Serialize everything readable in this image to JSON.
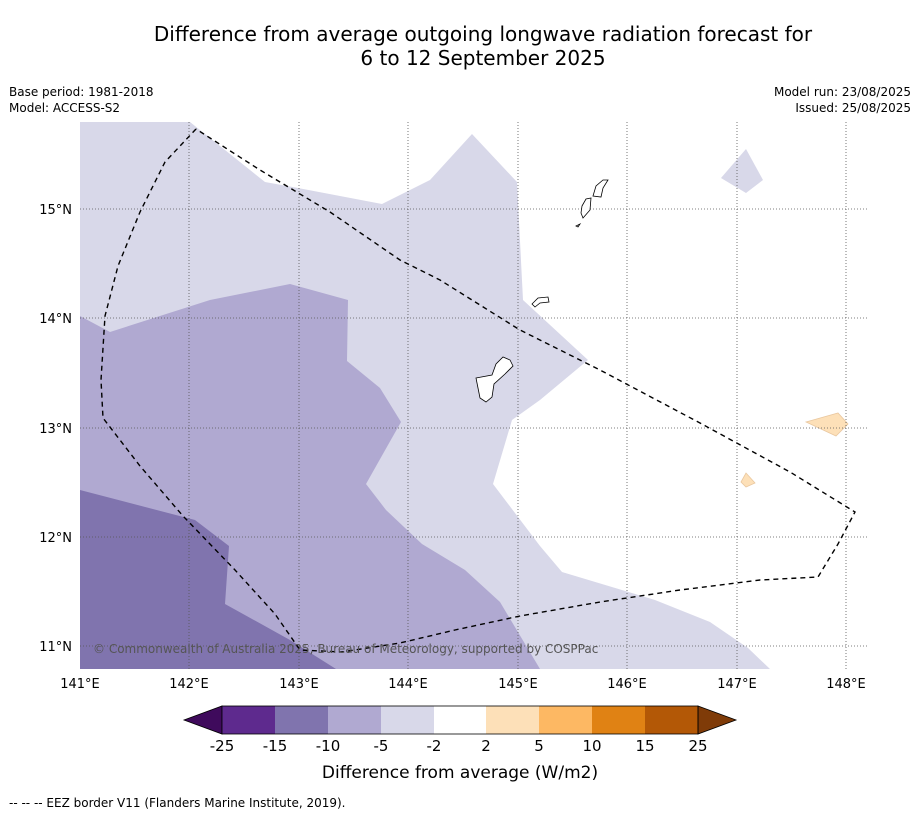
{
  "title_line1": "Difference from average outgoing longwave radiation forecast for",
  "title_line2": "6 to 12 September 2025",
  "base_period": "Base period: 1981-2018",
  "model": "Model: ACCESS-S2",
  "model_run": "Model run: 23/08/2025",
  "issued": "Issued: 25/08/2025",
  "copyright": "© Commonwealth of Australia 2025, Bureau of Meteorology, supported by COSPPac",
  "lat_labels": [
    "15°N",
    "14°N",
    "13°N",
    "12°N",
    "11°N"
  ],
  "lon_labels": [
    "141°E",
    "142°E",
    "143°E",
    "144°E",
    "145°E",
    "146°E",
    "147°E",
    "148°E"
  ],
  "colorbar": {
    "title": "Difference from average (W/m2)",
    "ticks": [
      "-25",
      "-15",
      "-10",
      "-5",
      "-2",
      "2",
      "5",
      "10",
      "15",
      "25"
    ],
    "colors": [
      "#3f0a5c",
      "#5e2a8e",
      "#8074ae",
      "#b0a9d1",
      "#d8d8e9",
      "#ffffff",
      "#fde0b8",
      "#fdb863",
      "#e08214",
      "#b35806",
      "#7f3b08"
    ]
  },
  "footer": "--  --  -- EEZ border V11 (Flanders Marine Institute, 2019)."
}
